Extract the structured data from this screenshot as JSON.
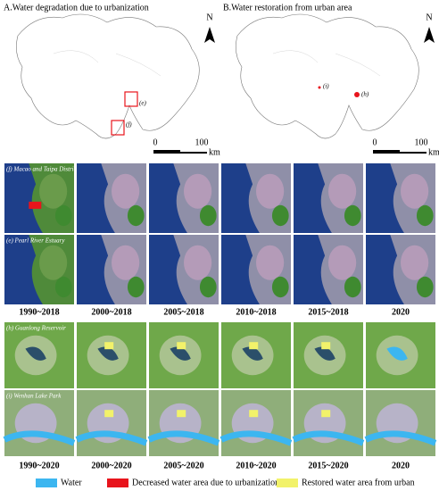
{
  "panels": [
    {
      "title": "A.Water degradation due to urbanization",
      "north": "N",
      "scale": {
        "start": "0",
        "end": "100",
        "unit": "km"
      },
      "sites": [
        "(e)",
        "(f)"
      ]
    },
    {
      "title": "B.Water restoration from urban area",
      "north": "N",
      "scale": {
        "start": "0",
        "end": "100",
        "unit": "km"
      },
      "sites": [
        "(i)",
        "(h)"
      ]
    }
  ],
  "groups": [
    {
      "rows": [
        "(f) Macao and Taipa District",
        "(e) Pearl River Estuary"
      ],
      "periods": [
        "1990~2018",
        "2000~2018",
        "2005~2018",
        "2010~2018",
        "2015~2018",
        "2020"
      ]
    },
    {
      "rows": [
        "(h) Guanlong Reservoir",
        "(i) Wenhan Lake Park"
      ],
      "periods": [
        "1990~2020",
        "2000~2020",
        "2005~2020",
        "2010~2020",
        "2015~2020",
        "2020"
      ]
    }
  ],
  "legend": [
    {
      "label": "Water",
      "color": "#3cb6f0"
    },
    {
      "label": "Decreased water area due to urbanization",
      "color": "#e8141c"
    },
    {
      "label": "Restored water area from urban",
      "color": "#f2f26a"
    }
  ]
}
